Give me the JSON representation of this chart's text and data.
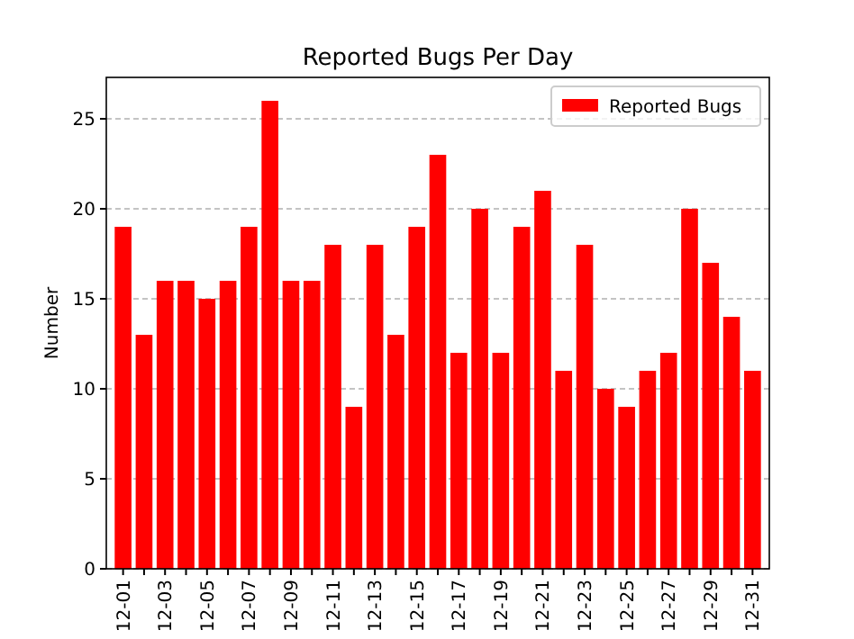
{
  "chart_data": {
    "type": "bar",
    "title": "Reported Bugs Per Day",
    "ylabel": "Number",
    "categories": [
      "12-01",
      null,
      "12-03",
      null,
      "12-05",
      null,
      "12-07",
      null,
      "12-09",
      null,
      "12-11",
      null,
      "12-13",
      null,
      "12-15",
      null,
      "12-17",
      null,
      "12-19",
      null,
      "12-21",
      null,
      "12-23",
      null,
      "12-25",
      null,
      "12-27",
      null,
      "12-29",
      null,
      "12-31"
    ],
    "series": [
      {
        "name": "Reported Bugs",
        "color": "#ff0000",
        "values": [
          19,
          13,
          16,
          16,
          15,
          16,
          19,
          26,
          16,
          16,
          18,
          9,
          18,
          13,
          19,
          23,
          12,
          20,
          12,
          19,
          21,
          11,
          18,
          10,
          9,
          11,
          12,
          20,
          17,
          14,
          11
        ]
      }
    ],
    "ylim": [
      0,
      27.3
    ],
    "yticks": [
      0,
      5,
      10,
      15,
      20,
      25
    ],
    "grid": "y",
    "legend": "top right"
  }
}
